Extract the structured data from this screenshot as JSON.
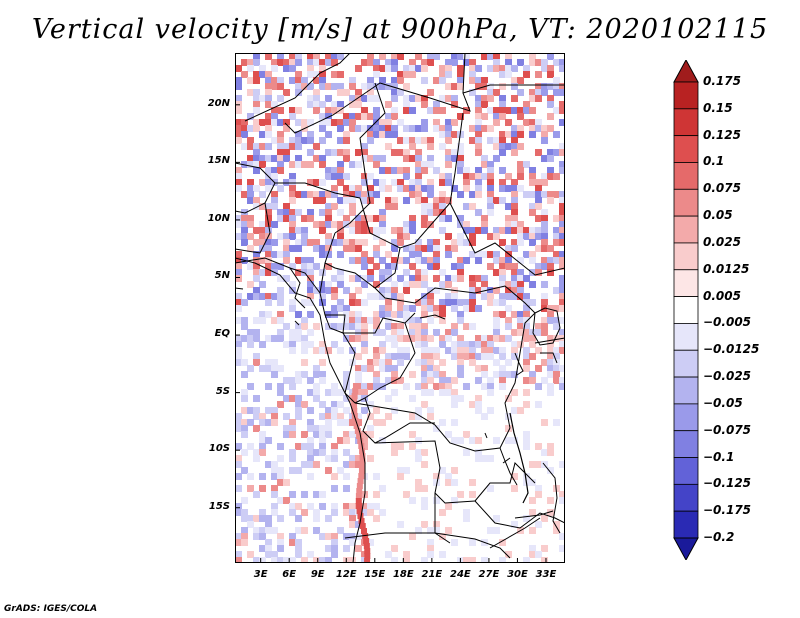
{
  "title": "Vertical velocity [m/s] at 900hPa, VT: 2020102115",
  "map": {
    "lat_labels": [
      "20N",
      "15N",
      "10N",
      "5N",
      "EQ",
      "5S",
      "10S",
      "15S"
    ],
    "lat_values": [
      20,
      15,
      10,
      5,
      0,
      -5,
      -10,
      -15
    ],
    "lon_labels": [
      "3E",
      "6E",
      "9E",
      "12E",
      "15E",
      "18E",
      "21E",
      "24E",
      "27E",
      "30E",
      "33E"
    ],
    "lon_values": [
      3,
      6,
      9,
      12,
      15,
      18,
      21,
      24,
      27,
      30,
      33
    ],
    "lon_range": [
      0.3,
      35.0
    ],
    "lat_range": [
      -19.8,
      24.5
    ]
  },
  "colorbar": {
    "labels": [
      "0.175",
      "0.15",
      "0.125",
      "0.1",
      "0.075",
      "0.05",
      "0.025",
      "0.0125",
      "0.005",
      "−0.005",
      "−0.0125",
      "−0.025",
      "−0.05",
      "−0.075",
      "−0.1",
      "−0.125",
      "−0.175",
      "−0.2"
    ],
    "colors": [
      "#a01c1c",
      "#b82222",
      "#cf3535",
      "#de4f4f",
      "#e56a6a",
      "#ec8a8a",
      "#f3aaaa",
      "#f9cccc",
      "#fde6e6",
      "#ffffff",
      "#e6e6fa",
      "#cdcdf5",
      "#b3b3ef",
      "#9a9aea",
      "#8080e2",
      "#6262d8",
      "#4444c8",
      "#2a2ab4",
      "#1a1a9a"
    ]
  },
  "credit": "GrADS: IGES/COLA"
}
